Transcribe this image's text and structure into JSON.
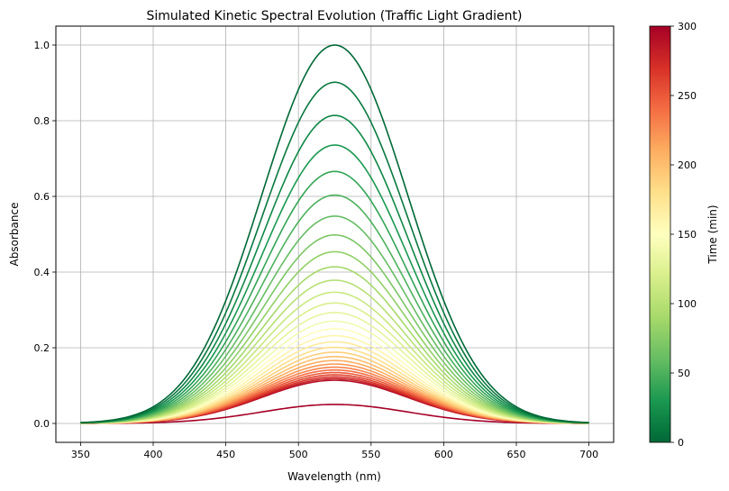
{
  "chart_data": {
    "type": "line",
    "title": "Simulated Kinetic Spectral Evolution (Traffic Light Gradient)",
    "xlabel": "Wavelength (nm)",
    "ylabel": "Absorbance",
    "xlim": [
      333,
      717
    ],
    "ylim": [
      -0.05,
      1.05
    ],
    "xticks": [
      350,
      400,
      450,
      500,
      550,
      600,
      650,
      700
    ],
    "yticks": [
      0.0,
      0.2,
      0.4,
      0.6,
      0.8,
      1.0
    ],
    "grid": true,
    "series_model": {
      "form": "gaussian",
      "center_nm": 525,
      "sigma_nm": 50,
      "x_range": [
        350,
        700
      ],
      "times_min": [
        0,
        10,
        20,
        30,
        40,
        50,
        60,
        70,
        80,
        90,
        100,
        110,
        120,
        130,
        140,
        150,
        160,
        170,
        180,
        190,
        200,
        210,
        220,
        230,
        240,
        250,
        260,
        270,
        280,
        290,
        300
      ],
      "peak_absorbance": [
        1.0,
        0.9017,
        0.8141,
        0.7358,
        0.666,
        0.6036,
        0.5479,
        0.4982,
        0.4537,
        0.414,
        0.3786,
        0.3468,
        0.3184,
        0.2931,
        0.2704,
        0.2501,
        0.2319,
        0.2157,
        0.2012,
        0.1883,
        0.1767,
        0.1663,
        0.1569,
        0.1486,
        0.1412,
        0.1345,
        0.1285,
        0.1231,
        0.1183,
        0.114,
        0.0502
      ]
    },
    "colorbar": {
      "label": "Time (min)",
      "range": [
        0,
        300
      ],
      "ticks": [
        0,
        50,
        100,
        150,
        200,
        250,
        300
      ],
      "colormap": "RdYlGn_r",
      "colors": [
        "#006837",
        "#1a9850",
        "#66bd63",
        "#a6d96a",
        "#d9ef8b",
        "#ffffbf",
        "#fee08b",
        "#fdae61",
        "#f46d43",
        "#d73027",
        "#a50026"
      ]
    }
  }
}
